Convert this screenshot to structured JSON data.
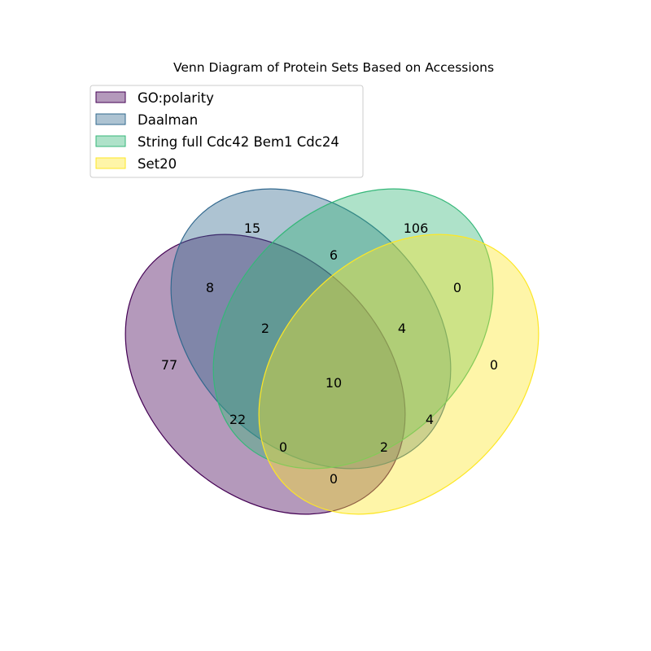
{
  "title": "Venn Diagram of Protein Sets Based on Accessions",
  "sets": [
    {
      "name": "GO:polarity",
      "color": "#440154"
    },
    {
      "name": "Daalman",
      "color": "#31688e"
    },
    {
      "name": "String full Cdc42 Bem1 Cdc24",
      "color": "#35b779"
    },
    {
      "name": "Set20",
      "color": "#fde725"
    }
  ],
  "regions": [
    {
      "sets": [
        "Daalman"
      ],
      "count": "15"
    },
    {
      "sets": [
        "String full Cdc42 Bem1 Cdc24"
      ],
      "count": "106"
    },
    {
      "sets": [
        "Daalman",
        "String full Cdc42 Bem1 Cdc24"
      ],
      "count": "6"
    },
    {
      "sets": [
        "GO:polarity",
        "Daalman"
      ],
      "count": "8"
    },
    {
      "sets": [
        "String full Cdc42 Bem1 Cdc24",
        "Set20"
      ],
      "count": "0"
    },
    {
      "sets": [
        "GO:polarity",
        "Daalman",
        "String full Cdc42 Bem1 Cdc24"
      ],
      "count": "2"
    },
    {
      "sets": [
        "Daalman",
        "String full Cdc42 Bem1 Cdc24",
        "Set20"
      ],
      "count": "4"
    },
    {
      "sets": [
        "GO:polarity"
      ],
      "count": "77"
    },
    {
      "sets": [
        "Set20"
      ],
      "count": "0"
    },
    {
      "sets": [
        "GO:polarity",
        "Daalman",
        "String full Cdc42 Bem1 Cdc24",
        "Set20"
      ],
      "count": "10"
    },
    {
      "sets": [
        "GO:polarity",
        "String full Cdc42 Bem1 Cdc24"
      ],
      "count": "22"
    },
    {
      "sets": [
        "Daalman",
        "Set20"
      ],
      "count": "4"
    },
    {
      "sets": [
        "GO:polarity",
        "String full Cdc42 Bem1 Cdc24",
        "Set20"
      ],
      "count": "0"
    },
    {
      "sets": [
        "GO:polarity",
        "Daalman",
        "Set20"
      ],
      "count": "2"
    },
    {
      "sets": [
        "GO:polarity",
        "Set20"
      ],
      "count": "0"
    }
  ]
}
